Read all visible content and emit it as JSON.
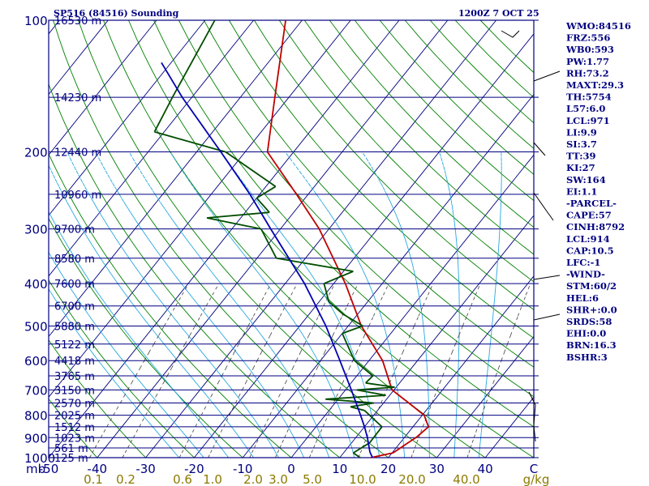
{
  "header": {
    "station": "SP516 (84516) Sounding",
    "time": "1200Z  7 OCT 25"
  },
  "colors": {
    "frame": "#000080",
    "isobar": "#000080",
    "isotherm": "#000080",
    "dry_adiabat": "#008000",
    "moist_adiabat": "#29a8e0",
    "mixing_ratio": "#404040",
    "temperature": "#c00000",
    "dewpoint": "#004d00",
    "parcel": "#0000b0",
    "text": "#000080",
    "mixing_label": "#8c7a00"
  },
  "chart_data": {
    "type": "line",
    "title": "SP516 (84516) Sounding",
    "y_axis": {
      "scale": "log",
      "range": [
        1000,
        100
      ],
      "label": "mb",
      "ticks": [
        100,
        200,
        300,
        400,
        500,
        600,
        700,
        800,
        900,
        1000
      ]
    },
    "x_axis": {
      "label": "C",
      "range": [
        -50,
        50
      ],
      "ticks": [
        "-50",
        "-40",
        "-30",
        "-20",
        "-10",
        "0",
        "10",
        "20",
        "30",
        "40"
      ]
    },
    "height_labels": [
      {
        "p": 100,
        "label": "16530 m"
      },
      {
        "p": 150,
        "label": "14230 m"
      },
      {
        "p": 200,
        "label": "12440 m"
      },
      {
        "p": 250,
        "label": "10960 m"
      },
      {
        "p": 300,
        "label": "9700 m"
      },
      {
        "p": 350,
        "label": "8580 m"
      },
      {
        "p": 400,
        "label": "7600 m"
      },
      {
        "p": 450,
        "label": "6700 m"
      },
      {
        "p": 500,
        "label": "5880 m"
      },
      {
        "p": 550,
        "label": "5122 m"
      },
      {
        "p": 600,
        "label": "4418 m"
      },
      {
        "p": 650,
        "label": "3765 m"
      },
      {
        "p": 700,
        "label": "3150 m"
      },
      {
        "p": 750,
        "label": "2570 m"
      },
      {
        "p": 800,
        "label": "2025 m"
      },
      {
        "p": 850,
        "label": "1512 m"
      },
      {
        "p": 900,
        "label": "1023 m"
      },
      {
        "p": 950,
        "label": "561 m"
      },
      {
        "p": 1000,
        "label": "125 m"
      }
    ],
    "mixing_ratio_labels": [
      "0.1",
      "0.2",
      "0.6",
      "1.0",
      "2.0",
      "3.0",
      "5.0",
      "10.0",
      "20.0",
      "40.0",
      "g/kg"
    ],
    "series": [
      {
        "key": "temperature",
        "points": [
          {
            "p": 1009,
            "t": 17.2
          },
          {
            "p": 1000,
            "t": 16.4
          },
          {
            "p": 975,
            "t": 20.2
          },
          {
            "p": 925,
            "t": 21.6
          },
          {
            "p": 900,
            "t": 22.4
          },
          {
            "p": 850,
            "t": 23.2
          },
          {
            "p": 800,
            "t": 20.4
          },
          {
            "p": 750,
            "t": 15.2
          },
          {
            "p": 700,
            "t": 9.6
          },
          {
            "p": 600,
            "t": 2.8
          },
          {
            "p": 500,
            "t": -7.3
          },
          {
            "p": 400,
            "t": -17.6
          },
          {
            "p": 300,
            "t": -32.0
          },
          {
            "p": 250,
            "t": -42.4
          },
          {
            "p": 200,
            "t": -55.4
          },
          {
            "p": 150,
            "t": -62.9
          },
          {
            "p": 100,
            "t": -73.4
          }
        ]
      },
      {
        "key": "dewpoint",
        "points": [
          {
            "p": 1009,
            "t": 15.0
          },
          {
            "p": 975,
            "t": 12.0
          },
          {
            "p": 925,
            "t": 13.7
          },
          {
            "p": 850,
            "t": 13.6
          },
          {
            "p": 780,
            "t": 7.3
          },
          {
            "p": 765,
            "t": 3.8
          },
          {
            "p": 750,
            "t": 8.0
          },
          {
            "p": 735,
            "t": -2.6
          },
          {
            "p": 720,
            "t": 9.2
          },
          {
            "p": 700,
            "t": 2.3
          },
          {
            "p": 690,
            "t": 9.7
          },
          {
            "p": 675,
            "t": 3.0
          },
          {
            "p": 650,
            "t": 3.3
          },
          {
            "p": 600,
            "t": -3.0
          },
          {
            "p": 520,
            "t": -10.0
          },
          {
            "p": 500,
            "t": -7.0
          },
          {
            "p": 470,
            "t": -13.0
          },
          {
            "p": 440,
            "t": -18.0
          },
          {
            "p": 400,
            "t": -22.0
          },
          {
            "p": 375,
            "t": -18.0
          },
          {
            "p": 350,
            "t": -36.0
          },
          {
            "p": 300,
            "t": -44.0
          },
          {
            "p": 283,
            "t": -57.0
          },
          {
            "p": 275,
            "t": -45.0
          },
          {
            "p": 255,
            "t": -50.0
          },
          {
            "p": 240,
            "t": -48.0
          },
          {
            "p": 200,
            "t": -64.0
          },
          {
            "p": 180,
            "t": -82.0
          },
          {
            "p": 150,
            "t": -84.0
          },
          {
            "p": 100,
            "t": -88.0
          }
        ]
      },
      {
        "key": "parcel",
        "points": [
          {
            "p": 1009,
            "t": 17.2
          },
          {
            "p": 971,
            "t": 15.3
          },
          {
            "p": 900,
            "t": 12.4
          },
          {
            "p": 850,
            "t": 10.0
          },
          {
            "p": 800,
            "t": 7.3
          },
          {
            "p": 700,
            "t": 1.2
          },
          {
            "p": 600,
            "t": -6.0
          },
          {
            "p": 500,
            "t": -14.6
          },
          {
            "p": 400,
            "t": -26.0
          },
          {
            "p": 300,
            "t": -42.0
          },
          {
            "p": 250,
            "t": -52.0
          },
          {
            "p": 200,
            "t": -65.0
          },
          {
            "p": 150,
            "t": -82.0
          },
          {
            "p": 125,
            "t": -92.0
          }
        ]
      }
    ],
    "grid": true
  },
  "indices": [
    "WMO:84516",
    "FRZ:556",
    "WB0:593",
    "PW:1.77",
    "RH:73.2",
    "MAXT:29.3",
    "TH:5754",
    "L57:6.0",
    "LCL:971",
    "LI:9.9",
    "SI:3.7",
    "TT:39",
    "KI:27",
    "SW:164",
    "EI:1.1",
    "-PARCEL-",
    "CAPE:57",
    "CINH:8792",
    "LCL:914",
    "CAP:10.5",
    "LFC:-1",
    "-WIND-",
    "STM:60/2",
    "HEL:6",
    "SHR+:0.0",
    "SRDS:58",
    "EHI:0.0",
    "BRN:16.3",
    "BSHR:3"
  ]
}
